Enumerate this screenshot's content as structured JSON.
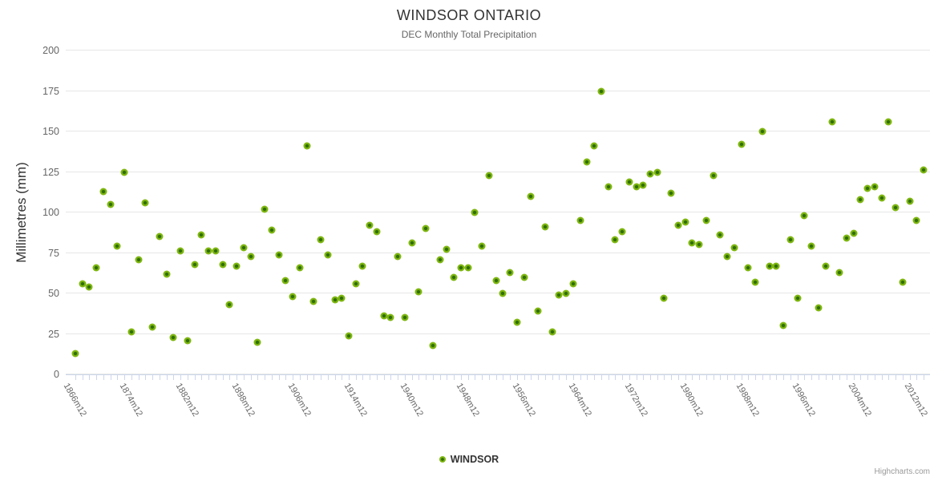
{
  "credits": {
    "label": "Highcharts.com"
  },
  "colors": {
    "marker_outer": "#7eb60f",
    "marker_core": "#2f6e08",
    "gridline": "#e6e6e6",
    "axis_tick": "#ccd6eb",
    "text_dark": "#333333",
    "text_muted": "#666666",
    "credits_text": "#999999"
  },
  "chart_data": {
    "type": "scatter",
    "title": "WINDSOR ONTARIO",
    "subtitle": "DEC Monthly Total Precipitation",
    "ylabel": "Millimetres (mm)",
    "ylim": [
      0,
      200
    ],
    "yticks": [
      0,
      25,
      50,
      75,
      100,
      125,
      150,
      175,
      200
    ],
    "grid": "horizontal-only",
    "legend_position": "bottom-center",
    "n_points": 122,
    "x_tick_labels": [
      {
        "index": 0,
        "label": "1866m12"
      },
      {
        "index": 8,
        "label": "1874m12"
      },
      {
        "index": 16,
        "label": "1882m12"
      },
      {
        "index": 24,
        "label": "1898m12"
      },
      {
        "index": 32,
        "label": "1906m12"
      },
      {
        "index": 40,
        "label": "1914m12"
      },
      {
        "index": 48,
        "label": "1940m12"
      },
      {
        "index": 56,
        "label": "1948m12"
      },
      {
        "index": 64,
        "label": "1956m12"
      },
      {
        "index": 72,
        "label": "1964m12"
      },
      {
        "index": 80,
        "label": "1972m12"
      },
      {
        "index": 88,
        "label": "1980m12"
      },
      {
        "index": 96,
        "label": "1988m12"
      },
      {
        "index": 104,
        "label": "1996m12"
      },
      {
        "index": 112,
        "label": "2004m12"
      },
      {
        "index": 120,
        "label": "2012m12"
      }
    ],
    "series": [
      {
        "name": "WINDSOR",
        "color": "#7eb60f",
        "values": [
          13,
          56,
          54,
          66,
          113,
          105,
          79,
          125,
          26,
          71,
          106,
          29,
          85,
          62,
          23,
          76,
          21,
          68,
          86,
          76,
          76,
          68,
          43,
          67,
          78,
          73,
          20,
          102,
          89,
          74,
          58,
          48,
          66,
          141,
          45,
          83,
          74,
          46,
          47,
          24,
          56,
          67,
          92,
          88,
          36,
          35,
          73,
          35,
          81,
          51,
          90,
          18,
          71,
          77,
          60,
          66,
          66,
          100,
          79,
          123,
          58,
          50,
          63,
          32,
          60,
          110,
          39,
          91,
          26,
          49,
          50,
          56,
          95,
          131,
          141,
          175,
          116,
          83,
          88,
          119,
          116,
          117,
          124,
          125,
          47,
          112,
          92,
          94,
          81,
          80,
          95,
          123,
          86,
          73,
          78,
          142,
          66,
          57,
          150,
          67,
          67,
          30,
          83,
          47,
          98,
          79,
          41,
          67,
          156,
          63,
          84,
          87,
          108,
          115,
          116,
          109,
          156,
          103,
          57,
          107,
          95,
          126
        ]
      }
    ]
  }
}
